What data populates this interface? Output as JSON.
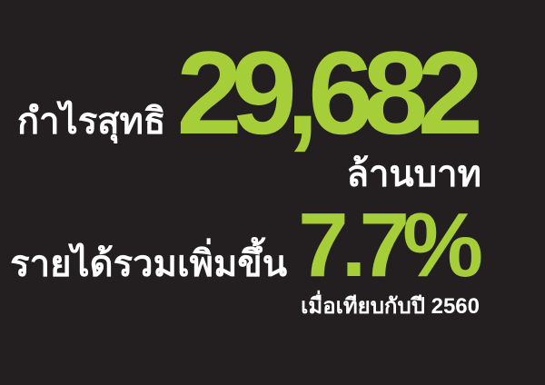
{
  "colors": {
    "background": "#231f20",
    "accent": "#a6ce39",
    "text": "#ffffff"
  },
  "profit": {
    "label": "กำไรสุทธิ",
    "value": "29,682",
    "unit": "ล้านบาท"
  },
  "revenue": {
    "label": "รายได้รวมเพิ่มขึ้น",
    "value": "7.7%",
    "note": "เมื่อเทียบกับปี 2560"
  }
}
